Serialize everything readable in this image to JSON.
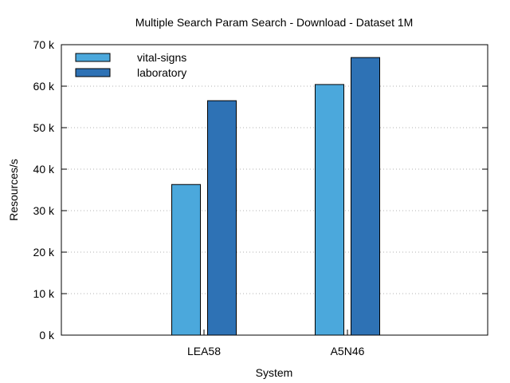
{
  "chart_data": {
    "type": "bar",
    "title": "Multiple Search Param Search - Download - Dataset 1M",
    "xlabel": "System",
    "ylabel": "Resources/s",
    "categories": [
      "LEA58",
      "A5N46"
    ],
    "series": [
      {
        "name": "vital-signs",
        "values": [
          36300,
          60400
        ],
        "color": "#4ba8dc"
      },
      {
        "name": "laboratory",
        "values": [
          56500,
          66900
        ],
        "color": "#2e72b5"
      }
    ],
    "ylim": [
      0,
      70000
    ],
    "y_ticks": [
      {
        "value": 0,
        "label": "0 k"
      },
      {
        "value": 10000,
        "label": "10 k"
      },
      {
        "value": 20000,
        "label": "20 k"
      },
      {
        "value": 30000,
        "label": "30 k"
      },
      {
        "value": 40000,
        "label": "40 k"
      },
      {
        "value": 50000,
        "label": "50 k"
      },
      {
        "value": 60000,
        "label": "60 k"
      },
      {
        "value": 70000,
        "label": "70 k"
      }
    ],
    "grid": "horizontal-dotted",
    "legend_position": "top-left"
  }
}
